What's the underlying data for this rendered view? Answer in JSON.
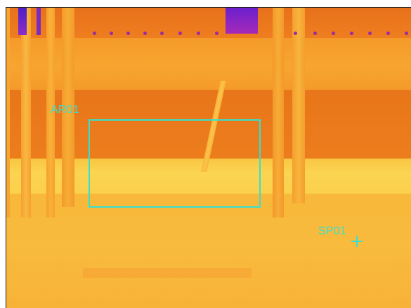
{
  "image": {
    "description_kind": "thermal-camera-frame",
    "palette": [
      "#4a1fc8",
      "#9a2c9e",
      "#e8711b",
      "#f08a1e",
      "#f7a530",
      "#fbd452"
    ]
  },
  "overlays": {
    "area_label": "AR01",
    "spot_label": "SP01",
    "marker_color": "#35e0d0"
  }
}
